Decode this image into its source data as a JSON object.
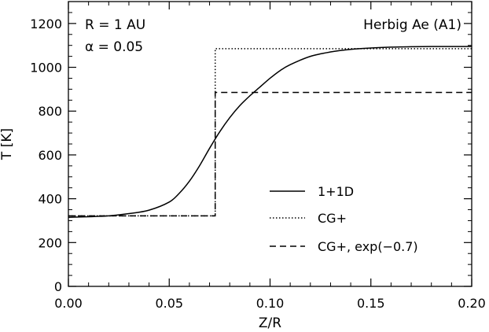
{
  "chart_data": {
    "type": "line",
    "xlabel": "Z/R",
    "ylabel": "T [K]",
    "xlim": [
      0.0,
      0.2
    ],
    "ylim": [
      0,
      1300
    ],
    "xticks": [
      0.0,
      0.05,
      0.1,
      0.15,
      0.2
    ],
    "xtick_labels": [
      "0.00",
      "0.05",
      "0.10",
      "0.15",
      "0.20"
    ],
    "yticks": [
      0,
      200,
      400,
      600,
      800,
      1000,
      1200
    ],
    "ytick_labels": [
      "0",
      "200",
      "400",
      "600",
      "800",
      "1000",
      "1200"
    ],
    "grid": false,
    "legend_position": "lower-right",
    "annotations": {
      "radius": "R = 1 AU",
      "alpha": "α = 0.05",
      "model": "Herbig Ae (A1)"
    },
    "series": [
      {
        "name": "1+1D",
        "style": "solid",
        "color": "#000000",
        "x": [
          0.0,
          0.01,
          0.02,
          0.03,
          0.04,
          0.05,
          0.055,
          0.06,
          0.065,
          0.07,
          0.075,
          0.08,
          0.085,
          0.09,
          0.095,
          0.1,
          0.105,
          0.11,
          0.12,
          0.13,
          0.14,
          0.15,
          0.16,
          0.17,
          0.18,
          0.2
        ],
        "y": [
          315,
          318,
          322,
          332,
          348,
          385,
          425,
          480,
          550,
          630,
          705,
          770,
          825,
          870,
          910,
          950,
          985,
          1012,
          1050,
          1070,
          1082,
          1088,
          1092,
          1094,
          1095,
          1095
        ]
      },
      {
        "name": "CG+",
        "style": "dotted",
        "color": "#000000",
        "x": [
          0.0,
          0.0728,
          0.0728,
          0.2
        ],
        "y": [
          322,
          322,
          1085,
          1085
        ]
      },
      {
        "name": "CG+, exp(−0.7)",
        "style": "dashed",
        "color": "#000000",
        "x": [
          0.0,
          0.0728,
          0.0728,
          0.2
        ],
        "y": [
          322,
          322,
          885,
          885
        ]
      }
    ]
  }
}
